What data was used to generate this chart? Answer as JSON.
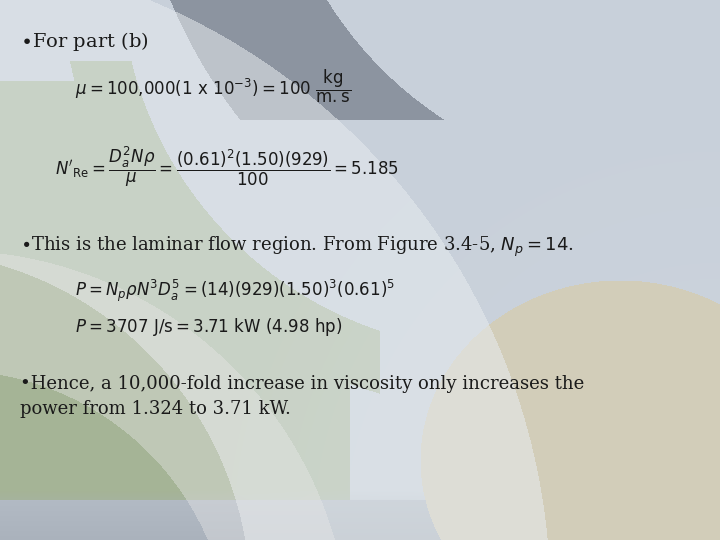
{
  "text_color": "#1a1a1a",
  "fontsize_title": 14,
  "fontsize_body": 13,
  "fontsize_eq": 12,
  "bg_main": "#c8cfd8",
  "bg_green": "#a8b89a",
  "bg_gray_top": "#8a8f9a",
  "bg_warm": "#d4cdb8",
  "bg_light": "#dde2e8"
}
